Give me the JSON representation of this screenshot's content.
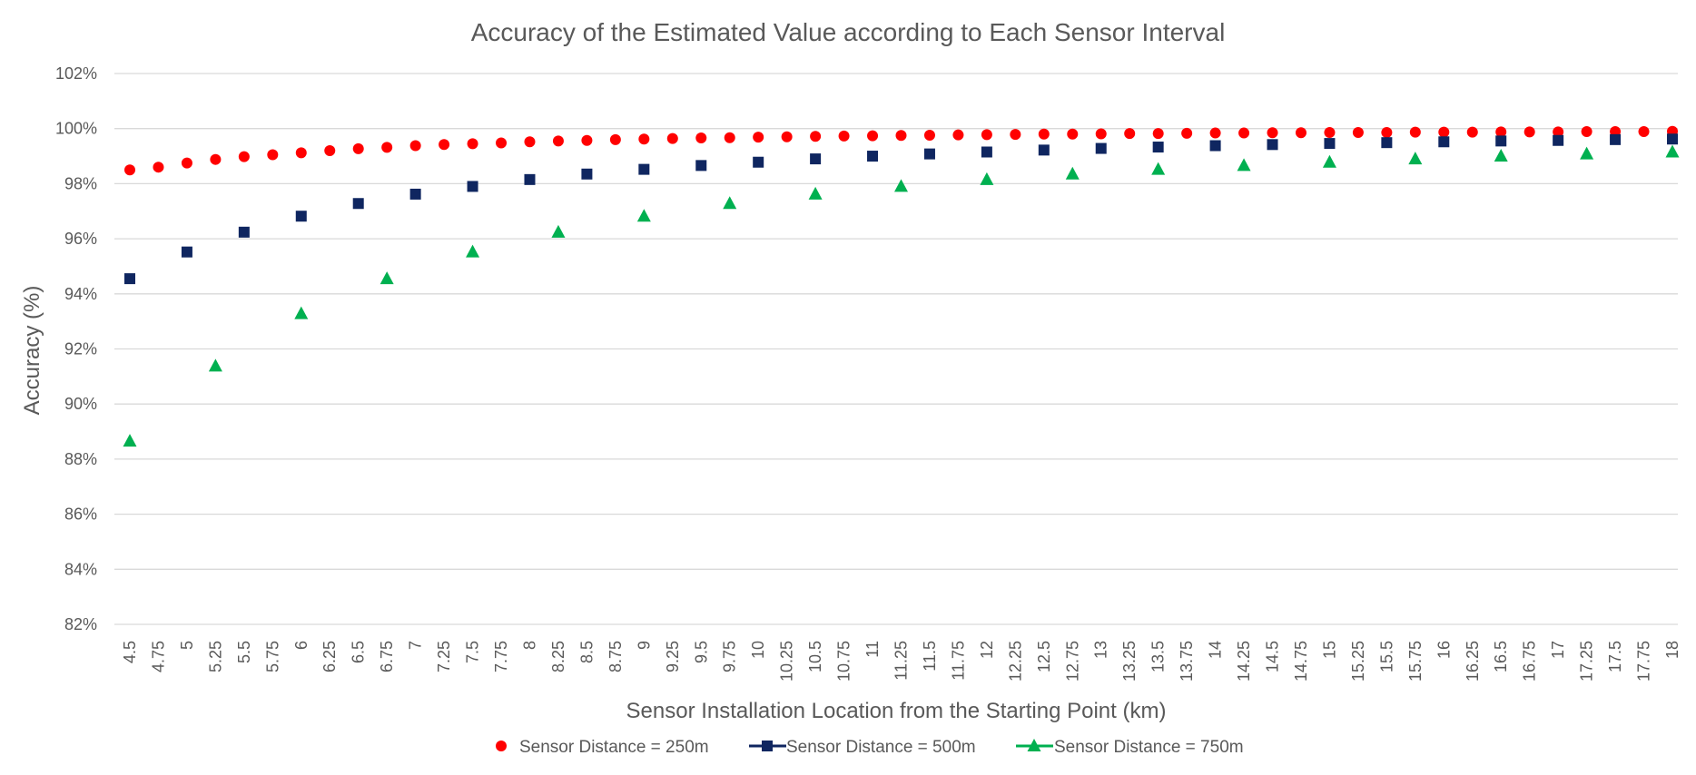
{
  "chart_data": {
    "type": "scatter",
    "title": "Accuracy of the Estimated Value according to Each  Sensor Interval",
    "xlabel": "Sensor Installation Location from the Starting Point (km)",
    "ylabel": "Accuracy (%)",
    "ylim": [
      82,
      102
    ],
    "yticks": [
      82,
      84,
      86,
      88,
      90,
      92,
      94,
      96,
      98,
      100,
      102
    ],
    "ytick_labels": [
      "82%",
      "84%",
      "86%",
      "88%",
      "90%",
      "92%",
      "94%",
      "96%",
      "98%",
      "100%",
      "102%"
    ],
    "categories": [
      "4.5",
      "4.75",
      "5",
      "5.25",
      "5.5",
      "5.75",
      "6",
      "6.25",
      "6.5",
      "6.75",
      "7",
      "7.25",
      "7.5",
      "7.75",
      "8",
      "8.25",
      "8.5",
      "8.75",
      "9",
      "9.25",
      "9.5",
      "9.75",
      "10",
      "10.25",
      "10.5",
      "10.75",
      "11",
      "11.25",
      "11.5",
      "11.75",
      "12",
      "12.25",
      "12.5",
      "12.75",
      "13",
      "13.25",
      "13.5",
      "13.75",
      "14",
      "14.25",
      "14.5",
      "14.75",
      "15",
      "15.25",
      "15.5",
      "15.75",
      "16",
      "16.25",
      "16.5",
      "16.75",
      "17",
      "17.25",
      "17.5",
      "17.75",
      "18"
    ],
    "grid": true,
    "legend_position": "bottom",
    "series": [
      {
        "name": "Sensor Distance = 250m",
        "marker": "circle",
        "color": "#ff0000",
        "x": [
          4.5,
          4.75,
          5,
          5.25,
          5.5,
          5.75,
          6,
          6.25,
          6.5,
          6.75,
          7,
          7.25,
          7.5,
          7.75,
          8,
          8.25,
          8.5,
          8.75,
          9,
          9.25,
          9.5,
          9.75,
          10,
          10.25,
          10.5,
          10.75,
          11,
          11.25,
          11.5,
          11.75,
          12,
          12.25,
          12.5,
          12.75,
          13,
          13.25,
          13.5,
          13.75,
          14,
          14.25,
          14.5,
          14.75,
          15,
          15.25,
          15.5,
          15.75,
          16,
          16.25,
          16.5,
          16.75,
          17,
          17.25,
          17.5,
          17.75,
          18
        ],
        "values": [
          98.5,
          98.6,
          98.75,
          98.88,
          98.98,
          99.05,
          99.12,
          99.2,
          99.27,
          99.32,
          99.38,
          99.42,
          99.45,
          99.48,
          99.52,
          99.55,
          99.57,
          99.6,
          99.62,
          99.64,
          99.66,
          99.67,
          99.69,
          99.7,
          99.72,
          99.73,
          99.74,
          99.75,
          99.76,
          99.77,
          99.78,
          99.79,
          99.8,
          99.8,
          99.81,
          99.82,
          99.82,
          99.83,
          99.84,
          99.84,
          99.85,
          99.85,
          99.86,
          99.86,
          99.86,
          99.87,
          99.87,
          99.87,
          99.88,
          99.88,
          99.88,
          99.89,
          99.89,
          99.89,
          99.9
        ]
      },
      {
        "name": "Sensor Distance = 500m",
        "marker": "square",
        "color": "#0f2660",
        "x": [
          4.5,
          5,
          5.5,
          6,
          6.5,
          7,
          7.5,
          8,
          8.5,
          9,
          9.5,
          10,
          10.5,
          11,
          11.5,
          12,
          12.5,
          13,
          13.5,
          14,
          14.5,
          15,
          15.5,
          16,
          16.5,
          17,
          17.5,
          18
        ],
        "values": [
          94.55,
          95.52,
          96.24,
          96.82,
          97.28,
          97.62,
          97.9,
          98.15,
          98.35,
          98.52,
          98.66,
          98.78,
          98.9,
          99.0,
          99.08,
          99.15,
          99.22,
          99.28,
          99.33,
          99.38,
          99.42,
          99.46,
          99.49,
          99.52,
          99.55,
          99.57,
          99.6,
          99.62
        ]
      },
      {
        "name": "Sensor Distance = 750m",
        "marker": "triangle",
        "color": "#00b050",
        "x": [
          4.5,
          5.25,
          6,
          6.75,
          7.5,
          8.25,
          9,
          9.75,
          10.5,
          11.25,
          12,
          12.75,
          13.5,
          14.25,
          15,
          15.75,
          16.5,
          17.25,
          18
        ],
        "values": [
          88.65,
          91.38,
          93.28,
          94.55,
          95.52,
          96.24,
          96.82,
          97.28,
          97.62,
          97.9,
          98.15,
          98.35,
          98.52,
          98.66,
          98.78,
          98.9,
          99.0,
          99.08,
          99.15
        ]
      }
    ]
  }
}
